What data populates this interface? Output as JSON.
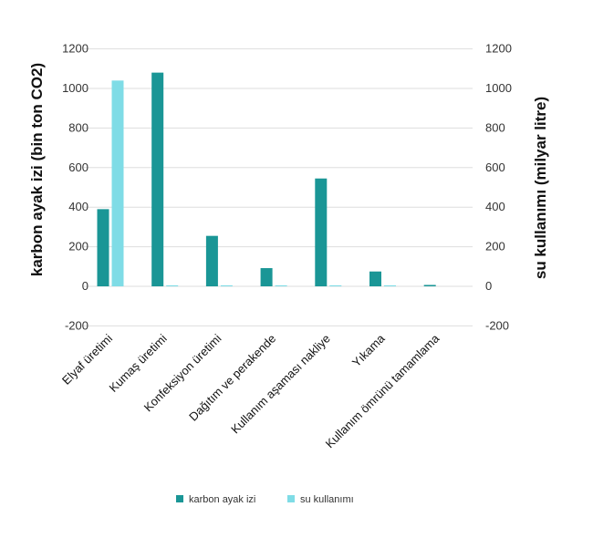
{
  "chart_data": {
    "type": "bar",
    "categories": [
      "Elyaf üretimi",
      "Kumaş üretimi",
      "Konfeksiyon üretimi",
      "Dağıtım ve perakende",
      "Kullanım aşaması nakliye",
      "Yıkama",
      "Kullanım ömrünü tamamlama"
    ],
    "series": [
      {
        "name": "karbon ayak izi",
        "axis": "left",
        "color": "#1a9696",
        "values": [
          390,
          1080,
          255,
          92,
          545,
          75,
          7
        ]
      },
      {
        "name": "su kullanımı",
        "axis": "right",
        "color": "#7fdce6",
        "values": [
          1040,
          5,
          5,
          5,
          5,
          5,
          0
        ]
      }
    ],
    "ylabel_left": "karbon ayak izi (bin ton CO2)",
    "ylabel_right": "su kullanımı (milyar litre)",
    "ylim": [
      -200,
      1200
    ],
    "y_ticks": [
      -200,
      0,
      200,
      400,
      600,
      800,
      1000,
      1200
    ],
    "grid": true,
    "legend_position": "bottom"
  }
}
